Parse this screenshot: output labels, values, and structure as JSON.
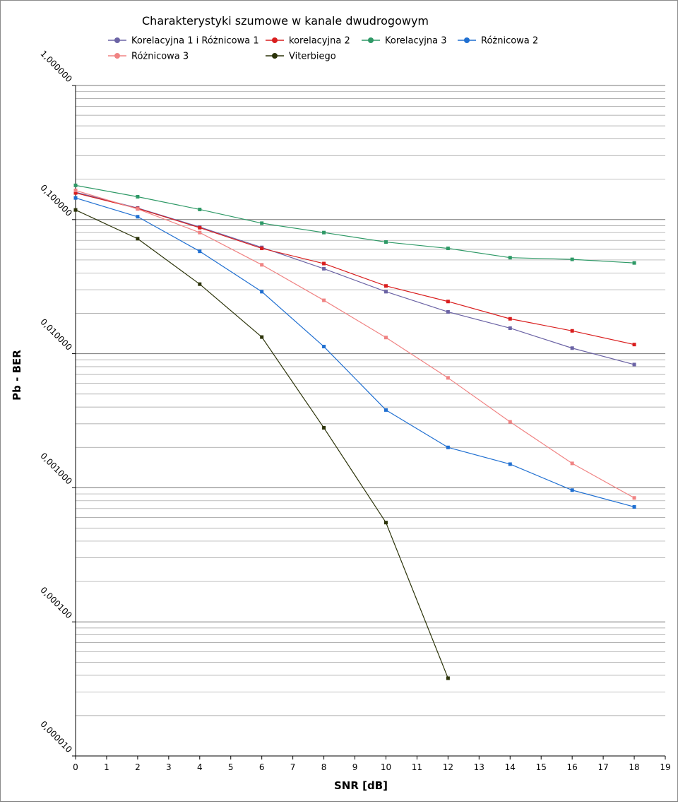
{
  "chart_data": {
    "type": "line",
    "title": "Charakterystyki szumowe w kanale dwudrogowym",
    "xlabel": "SNR [dB]",
    "ylabel": "Pb - BER",
    "xlim": [
      0,
      19
    ],
    "ylim": [
      1e-05,
      1.0
    ],
    "yscale": "log",
    "grid": true,
    "legend_position": "top",
    "x_ticks": [
      "0",
      "1",
      "2",
      "3",
      "4",
      "5",
      "6",
      "7",
      "8",
      "9",
      "10",
      "11",
      "12",
      "13",
      "14",
      "15",
      "16",
      "17",
      "18",
      "19"
    ],
    "y_ticks": [
      {
        "value": 1.0,
        "label": "1,000000"
      },
      {
        "value": 0.1,
        "label": "0,100000"
      },
      {
        "value": 0.01,
        "label": "0,010000"
      },
      {
        "value": 0.001,
        "label": "0,001000"
      },
      {
        "value": 0.0001,
        "label": "0,000100"
      },
      {
        "value": 1e-05,
        "label": "0,000010"
      }
    ],
    "series": [
      {
        "name": "Korelacyjna 1 i Różnicowa 1",
        "color": "#6b63a5",
        "x": [
          0,
          2,
          4,
          6,
          8,
          10,
          12,
          14,
          16,
          18
        ],
        "y": [
          0.16,
          0.122,
          0.088,
          0.062,
          0.043,
          0.029,
          0.0205,
          0.0155,
          0.011,
          0.0083
        ]
      },
      {
        "name": "korelacyjna 2",
        "color": "#d91e1e",
        "x": [
          0,
          2,
          4,
          6,
          8,
          10,
          12,
          14,
          16,
          18
        ],
        "y": [
          0.158,
          0.121,
          0.087,
          0.061,
          0.047,
          0.032,
          0.0245,
          0.0182,
          0.0148,
          0.0117
        ]
      },
      {
        "name": "Korelacyjna 3",
        "color": "#2e9966",
        "x": [
          0,
          2,
          4,
          6,
          8,
          10,
          12,
          14,
          16,
          18
        ],
        "y": [
          0.18,
          0.148,
          0.119,
          0.094,
          0.08,
          0.068,
          0.061,
          0.052,
          0.0505,
          0.0475
        ]
      },
      {
        "name": "Różnicowa 2",
        "color": "#1f6fd1",
        "x": [
          0,
          2,
          4,
          6,
          8,
          10,
          12,
          14,
          16,
          18
        ],
        "y": [
          0.145,
          0.105,
          0.058,
          0.029,
          0.0113,
          0.0038,
          0.002,
          0.0015,
          0.00096,
          0.00072
        ]
      },
      {
        "name": "Różnicowa 3",
        "color": "#f08383",
        "x": [
          0,
          2,
          4,
          6,
          8,
          10,
          12,
          14,
          16,
          18
        ],
        "y": [
          0.165,
          0.12,
          0.08,
          0.046,
          0.025,
          0.0132,
          0.0066,
          0.0031,
          0.00152,
          0.00084
        ]
      },
      {
        "name": "Viterbiego",
        "color": "#2b3309",
        "x": [
          0,
          2,
          4,
          6,
          8,
          10,
          12
        ],
        "y": [
          0.118,
          0.072,
          0.033,
          0.0133,
          0.0028,
          0.00055,
          3.8e-05
        ]
      }
    ]
  }
}
